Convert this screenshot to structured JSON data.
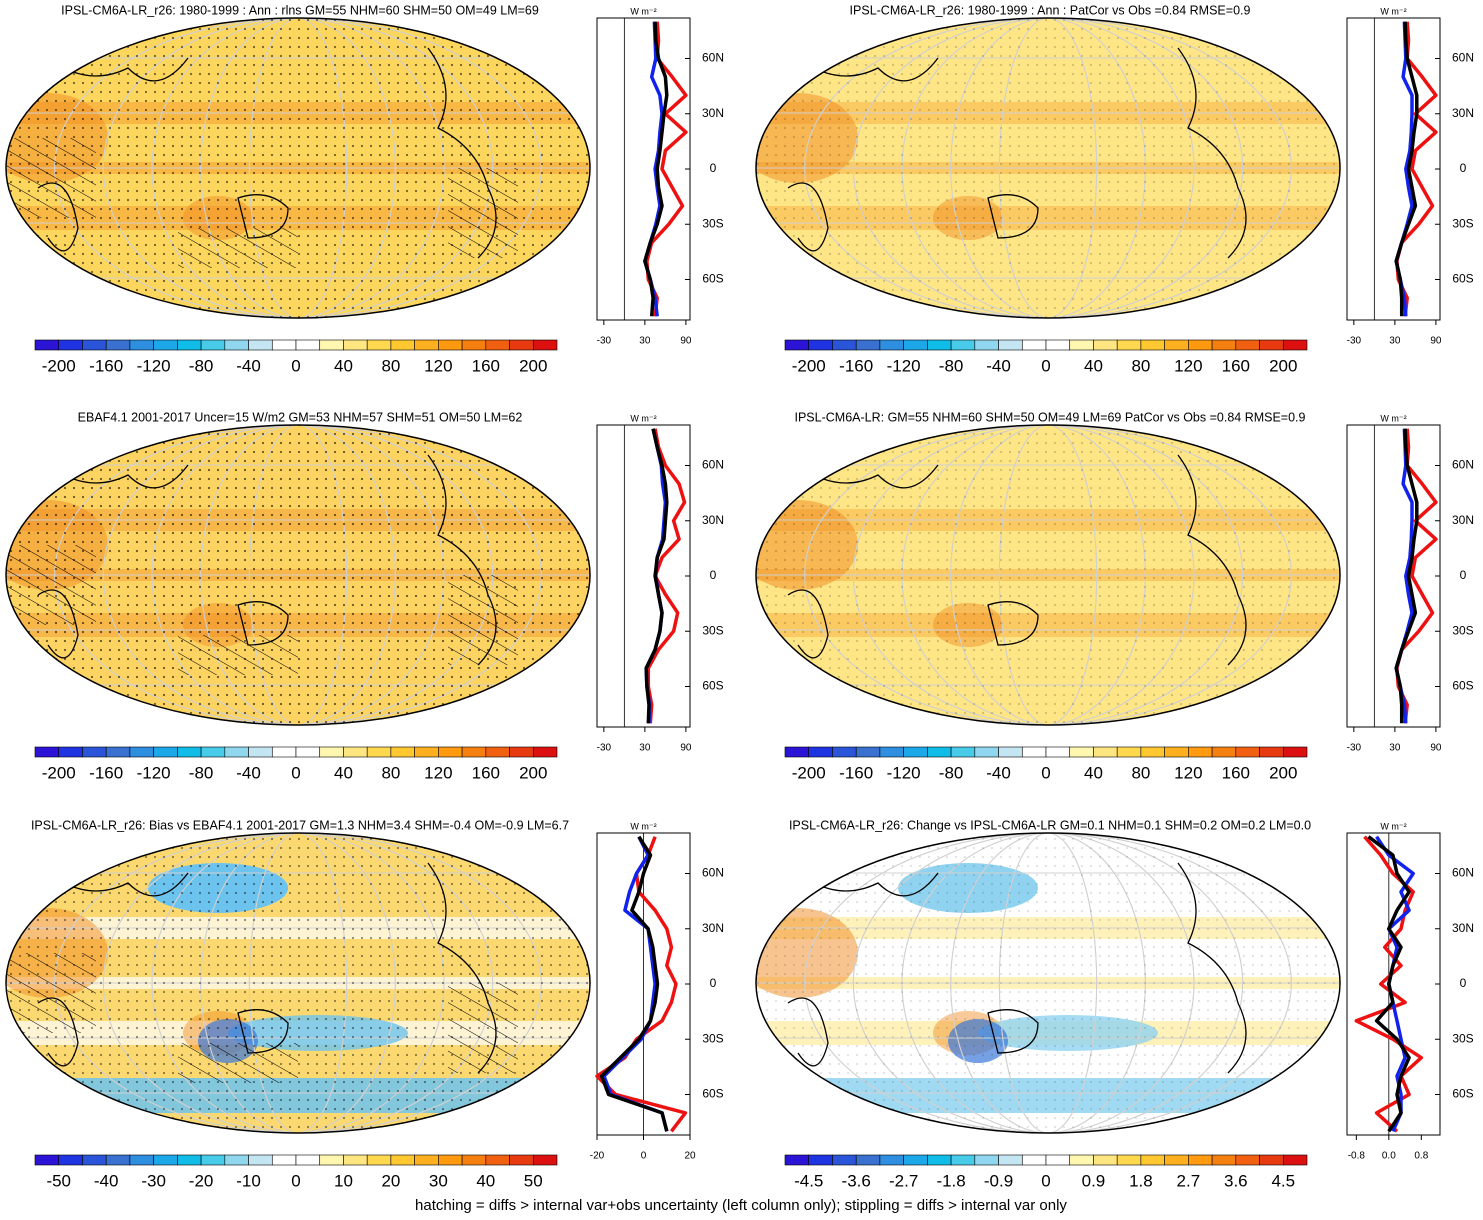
{
  "chart_data": [
    {
      "type": "map",
      "title": "IPSL-CM6A-LR_r26: 1980-1999 : Ann : rlns GM=55 NHM=60 SHM=50 OM=49 LM=69",
      "colorbar_ticks": [
        -200,
        -160,
        -120,
        -80,
        -40,
        0,
        40,
        80,
        120,
        160,
        200
      ],
      "zonal": {
        "type": "line",
        "x_label": "W m⁻²",
        "xlim": [
          -40,
          96
        ],
        "xticks": [
          -30,
          30,
          90
        ],
        "ylim": [
          -82,
          82
        ],
        "yticks": [
          {
            "value": 60,
            "label": "60N"
          },
          {
            "value": 30,
            "label": "30N"
          },
          0,
          {
            "value": -30,
            "label": "30S"
          },
          {
            "value": -60,
            "label": "60S"
          }
        ],
        "y": [
          -80,
          -70,
          -60,
          -50,
          -40,
          -30,
          -20,
          -10,
          0,
          10,
          20,
          30,
          40,
          50,
          60,
          70,
          80
        ],
        "series": [
          {
            "color": "#ee1111",
            "values": [
              45,
              48,
              35,
              33,
              40,
              65,
              85,
              70,
              55,
              60,
              90,
              60,
              90,
              70,
              48,
              50,
              48
            ]
          },
          {
            "color": "#1122ee",
            "values": [
              48,
              45,
              38,
              30,
              38,
              46,
              52,
              48,
              45,
              50,
              52,
              55,
              52,
              40,
              46,
              45,
              44
            ]
          },
          {
            "color": "#000000",
            "values": [
              40,
              42,
              38,
              30,
              38,
              48,
              55,
              50,
              48,
              52,
              55,
              58,
              62,
              60,
              50,
              46,
              45
            ]
          }
        ]
      }
    },
    {
      "type": "map",
      "title": "IPSL-CM6A-LR_r26: 1980-1999 : Ann : PatCor vs Obs =0.84 RMSE=0.9",
      "colorbar_ticks": [
        -200,
        -160,
        -120,
        -80,
        -40,
        0,
        40,
        80,
        120,
        160,
        200
      ],
      "zonal": {
        "type": "line",
        "x_label": "W m⁻²",
        "xlim": [
          -40,
          96
        ],
        "xticks": [
          -30,
          30,
          90
        ],
        "ylim": [
          -82,
          82
        ],
        "yticks": [
          {
            "value": 60,
            "label": "60N"
          },
          {
            "value": 30,
            "label": "30N"
          },
          0,
          {
            "value": -30,
            "label": "30S"
          },
          {
            "value": -60,
            "label": "60S"
          }
        ],
        "y": [
          -80,
          -70,
          -60,
          -50,
          -40,
          -30,
          -20,
          -10,
          0,
          10,
          20,
          30,
          40,
          50,
          60,
          70,
          80
        ],
        "series": [
          {
            "color": "#ee1111",
            "values": [
              45,
              48,
              35,
              33,
              40,
              65,
              85,
              70,
              55,
              60,
              90,
              60,
              90,
              70,
              48,
              50,
              48
            ]
          },
          {
            "color": "#1122ee",
            "values": [
              46,
              44,
              38,
              32,
              40,
              48,
              55,
              50,
              46,
              52,
              54,
              55,
              55,
              42,
              46,
              45,
              44
            ]
          },
          {
            "color": "#000000",
            "values": [
              40,
              40,
              38,
              32,
              40,
              50,
              60,
              55,
              50,
              55,
              58,
              62,
              62,
              55,
              48,
              46,
              45
            ]
          }
        ]
      }
    },
    {
      "type": "map",
      "title": "EBAF4.1 2001-2017 Uncer=15 W/m2 GM=53 NHM=57 SHM=51 OM=50 LM=62",
      "colorbar_ticks": [
        -200,
        -160,
        -120,
        -80,
        -40,
        0,
        40,
        80,
        120,
        160,
        200
      ],
      "zonal": {
        "type": "line",
        "x_label": "W m⁻²",
        "xlim": [
          -40,
          96
        ],
        "xticks": [
          -30,
          30,
          90
        ],
        "ylim": [
          -82,
          82
        ],
        "yticks": [
          {
            "value": 60,
            "label": "60N"
          },
          {
            "value": 30,
            "label": "30N"
          },
          0,
          {
            "value": -30,
            "label": "30S"
          },
          {
            "value": -60,
            "label": "60S"
          }
        ],
        "y": [
          -80,
          -70,
          -60,
          -50,
          -40,
          -30,
          -20,
          -10,
          0,
          10,
          20,
          30,
          40,
          50,
          60,
          70,
          80
        ],
        "series": [
          {
            "color": "#ee1111",
            "values": [
              38,
              40,
              35,
              35,
              50,
              72,
              78,
              60,
              45,
              55,
              80,
              72,
              88,
              80,
              60,
              50,
              45
            ]
          },
          {
            "color": "#1122ee",
            "values": [
              36,
              37,
              33,
              32,
              45,
              52,
              55,
              50,
              46,
              48,
              56,
              58,
              60,
              56,
              54,
              48,
              42
            ]
          },
          {
            "color": "#000000",
            "values": [
              35,
              36,
              33,
              32,
              45,
              52,
              55,
              50,
              45,
              48,
              58,
              60,
              62,
              60,
              55,
              48,
              42
            ]
          }
        ]
      }
    },
    {
      "type": "map",
      "title": "IPSL-CM6A-LR: GM=55 NHM=60 SHM=50 OM=49 LM=69 PatCor vs Obs =0.84 RMSE=0.9",
      "colorbar_ticks": [
        -200,
        -160,
        -120,
        -80,
        -40,
        0,
        40,
        80,
        120,
        160,
        200
      ],
      "zonal": {
        "type": "line",
        "x_label": "W m⁻²",
        "xlim": [
          -40,
          96
        ],
        "xticks": [
          -30,
          30,
          90
        ],
        "ylim": [
          -82,
          82
        ],
        "yticks": [
          {
            "value": 60,
            "label": "60N"
          },
          {
            "value": 30,
            "label": "30N"
          },
          0,
          {
            "value": -30,
            "label": "30S"
          },
          {
            "value": -60,
            "label": "60S"
          }
        ],
        "y": [
          -80,
          -70,
          -60,
          -50,
          -40,
          -30,
          -20,
          -10,
          0,
          10,
          20,
          30,
          40,
          50,
          60,
          70,
          80
        ],
        "series": [
          {
            "color": "#ee1111",
            "values": [
              45,
              48,
              35,
              33,
              40,
              65,
              85,
              70,
              55,
              60,
              90,
              60,
              90,
              70,
              48,
              50,
              48
            ]
          },
          {
            "color": "#1122ee",
            "values": [
              46,
              44,
              38,
              32,
              40,
              48,
              55,
              50,
              46,
              52,
              54,
              55,
              55,
              42,
              46,
              45,
              44
            ]
          },
          {
            "color": "#000000",
            "values": [
              40,
              40,
              38,
              32,
              40,
              50,
              60,
              55,
              50,
              55,
              58,
              62,
              62,
              55,
              48,
              46,
              45
            ]
          }
        ]
      }
    },
    {
      "type": "map",
      "title": "IPSL-CM6A-LR_r26: Bias vs EBAF4.1 2001-2017 GM=1.3 NHM=3.4 SHM=-0.4 OM=-0.9 LM=6.7",
      "colorbar_ticks": [
        -50,
        -40,
        -30,
        -20,
        -10,
        0,
        10,
        20,
        30,
        40,
        50
      ],
      "zonal": {
        "type": "line",
        "x_label": "W m⁻²",
        "xlim": [
          -20,
          20
        ],
        "xticks": [
          -20,
          0,
          20
        ],
        "ylim": [
          -82,
          82
        ],
        "yticks": [
          {
            "value": 60,
            "label": "60N"
          },
          {
            "value": 30,
            "label": "30N"
          },
          0,
          {
            "value": -30,
            "label": "30S"
          },
          {
            "value": -60,
            "label": "60S"
          }
        ],
        "y": [
          -80,
          -70,
          -60,
          -50,
          -40,
          -30,
          -20,
          -10,
          0,
          10,
          20,
          30,
          40,
          50,
          60,
          70,
          80
        ],
        "series": [
          {
            "color": "#ee1111",
            "values": [
              12,
              18,
              -12,
              -20,
              -8,
              -3,
              8,
              12,
              14,
              10,
              12,
              10,
              5,
              -2,
              -3,
              2,
              5
            ]
          },
          {
            "color": "#1122ee",
            "values": [
              10,
              8,
              -14,
              -17,
              -9,
              -1,
              3,
              4,
              5,
              4,
              3,
              2,
              -8,
              -6,
              -3,
              2,
              -2
            ]
          },
          {
            "color": "#000000",
            "values": [
              10,
              8,
              -15,
              -18,
              -10,
              -2,
              3,
              5,
              6,
              5,
              4,
              2,
              -5,
              -2,
              0,
              3,
              -2
            ]
          }
        ]
      }
    },
    {
      "type": "map",
      "title": "IPSL-CM6A-LR_r26: Change vs IPSL-CM6A-LR GM=0.1 NHM=0.1 SHM=0.2 OM=0.2 LM=0.0",
      "colorbar_ticks": [
        -4.5,
        -3.6,
        -2.7,
        -1.8,
        -0.9,
        0,
        0.9,
        1.8,
        2.7,
        3.6,
        4.5
      ],
      "zonal": {
        "type": "line",
        "x_label": "W m⁻²",
        "xlim": [
          -1.03,
          1.26
        ],
        "xticks": [
          -0.8,
          {
            "value": 0,
            "label": "0.0"
          },
          0.8
        ],
        "ylim": [
          -82,
          82
        ],
        "yticks": [
          {
            "value": 60,
            "label": "60N"
          },
          {
            "value": 30,
            "label": "30N"
          },
          0,
          {
            "value": -30,
            "label": "30S"
          },
          {
            "value": -60,
            "label": "60S"
          }
        ],
        "y": [
          -80,
          -70,
          -60,
          -50,
          -40,
          -30,
          -20,
          -10,
          0,
          10,
          20,
          30,
          40,
          50,
          60,
          70,
          80
        ],
        "series": [
          {
            "color": "#ee1111",
            "values": [
              0.2,
              -0.3,
              0.5,
              0.3,
              0.8,
              0.1,
              -0.8,
              0.4,
              -0.2,
              0.3,
              -0.1,
              0.3,
              0.4,
              0.6,
              0.1,
              -0.2,
              -0.6
            ]
          },
          {
            "color": "#1122ee",
            "values": [
              0.1,
              0.3,
              0.3,
              0.2,
              0.4,
              0.3,
              0.2,
              0.1,
              0,
              0.1,
              0.2,
              0,
              0.5,
              0.3,
              0.6,
              0,
              -0.3
            ]
          },
          {
            "color": "#000000",
            "values": [
              0,
              0.3,
              0.2,
              0.3,
              0.5,
              0.2,
              -0.3,
              0.1,
              0,
              0.1,
              0.3,
              0,
              0.2,
              0.5,
              0.2,
              0.1,
              -0.5
            ]
          }
        ]
      }
    }
  ],
  "palette": [
    "#2b14d6",
    "#1f33e0",
    "#2a55d8",
    "#3a70d0",
    "#2e8ee0",
    "#1ca8e8",
    "#10bde8",
    "#48cbe8",
    "#8fd6ee",
    "#c4e6f2",
    "#ffffff",
    "#ffffff",
    "#fff7b0",
    "#ffe680",
    "#ffd850",
    "#ffc830",
    "#ffb020",
    "#ff9a10",
    "#f58010",
    "#f06010",
    "#e83a10",
    "#dd1010"
  ],
  "footnote": "hatching = diffs > internal var+obs uncertainty (left column only); stippling = diffs > internal var only"
}
